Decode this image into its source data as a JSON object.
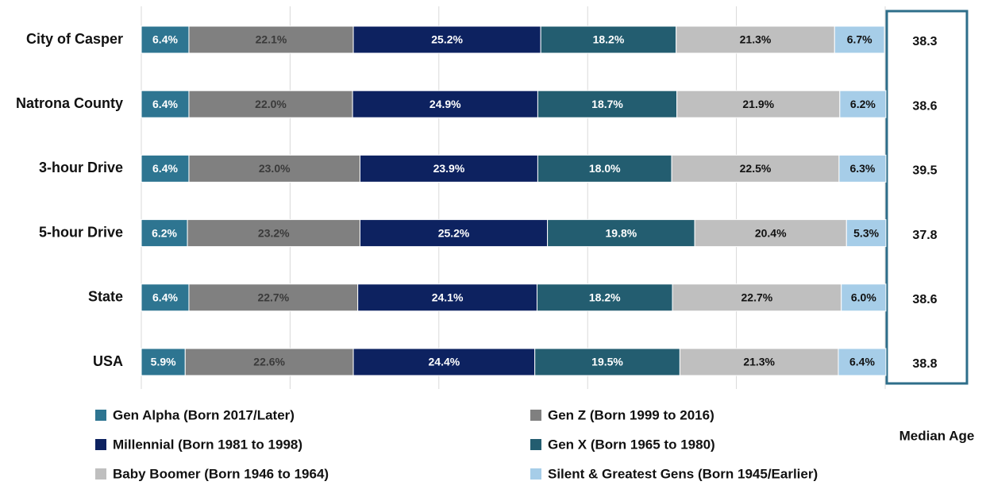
{
  "chart_data": {
    "type": "stacked_barh",
    "categories": [
      "City of Casper",
      "Natrona County",
      "3-hour Drive",
      "5-hour Drive",
      "State",
      "USA"
    ],
    "series": [
      {
        "name": "Gen Alpha (Born 2017/Later)",
        "color": "#2e7591",
        "label_color": "#ffffff",
        "values": [
          6.4,
          6.4,
          6.4,
          6.2,
          6.4,
          5.9
        ],
        "value_labels": [
          "6.4%",
          "6.4%",
          "6.4%",
          "6.2%",
          "6.4%",
          "5.9%"
        ]
      },
      {
        "name": "Gen Z (Born 1999 to 2016)",
        "color": "#808080",
        "label_color": "#3a3a3a",
        "values": [
          22.1,
          22.0,
          23.0,
          23.2,
          22.7,
          22.6
        ],
        "value_labels": [
          "22.1%",
          "22.0%",
          "23.0%",
          "23.2%",
          "22.7%",
          "22.6%"
        ]
      },
      {
        "name": "Millennial (Born 1981 to 1998)",
        "color": "#0d2260",
        "label_color": "#ffffff",
        "values": [
          25.2,
          24.9,
          23.9,
          25.2,
          24.1,
          24.4
        ],
        "value_labels": [
          "25.2%",
          "24.9%",
          "23.9%",
          "25.2%",
          "24.1%",
          "24.4%"
        ]
      },
      {
        "name": "Gen X  (Born 1965 to 1980)",
        "color": "#235d70",
        "label_color": "#ffffff",
        "values": [
          18.2,
          18.7,
          18.0,
          19.8,
          18.2,
          19.5
        ],
        "value_labels": [
          "18.2%",
          "18.7%",
          "18.0%",
          "19.8%",
          "18.2%",
          "19.5%"
        ]
      },
      {
        "name": "Baby Boomer (Born 1946 to 1964)",
        "color": "#bfbfbf",
        "label_color": "#111111",
        "values": [
          21.3,
          21.9,
          22.5,
          20.4,
          22.7,
          21.3
        ],
        "value_labels": [
          "21.3%",
          "21.9%",
          "22.5%",
          "20.4%",
          "22.7%",
          "21.3%"
        ]
      },
      {
        "name": "Silent & Greatest Gens (Born 1945/Earlier)",
        "color": "#a6cde8",
        "label_color": "#111111",
        "values": [
          6.7,
          6.2,
          6.3,
          5.3,
          6.0,
          6.4
        ],
        "value_labels": [
          "6.7%",
          "6.2%",
          "6.3%",
          "5.3%",
          "6.0%",
          "6.4%"
        ]
      }
    ],
    "xlim": [
      0,
      100
    ],
    "xticks": [
      0,
      20,
      40,
      60,
      80,
      100
    ],
    "grid": true,
    "median_age": {
      "label": "Median Age",
      "values": [
        38.3,
        38.6,
        39.5,
        37.8,
        38.6,
        38.8
      ]
    }
  }
}
